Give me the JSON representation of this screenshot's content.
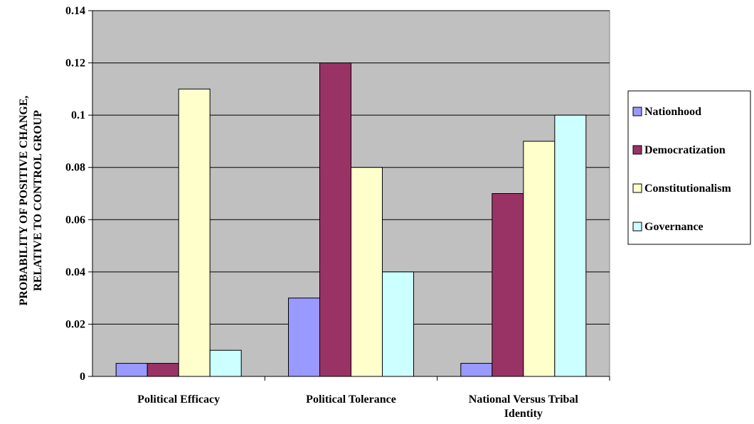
{
  "chart_data": {
    "type": "bar",
    "categories": [
      [
        "Political Efficacy"
      ],
      [
        "Political Tolerance"
      ],
      [
        "National Versus Tribal",
        "Identity"
      ]
    ],
    "series": [
      {
        "name": "Nationhood",
        "color": "#9999ff",
        "values": [
          0.005,
          0.03,
          0.005
        ]
      },
      {
        "name": "Democratization",
        "color": "#993366",
        "values": [
          0.005,
          0.12,
          0.07
        ]
      },
      {
        "name": "Constitutionalism",
        "color": "#ffffcc",
        "values": [
          0.11,
          0.08,
          0.09
        ]
      },
      {
        "name": "Governance",
        "color": "#ccffff",
        "values": [
          0.01,
          0.04,
          0.1
        ]
      }
    ],
    "ylabel": [
      "PROBABILITY OF POSITIVE CHANGE,",
      "RELATIVE TO CONTROL GROUP"
    ],
    "ylim": [
      0,
      0.14
    ],
    "yticks": [
      "0",
      "0.02",
      "0.04",
      "0.06",
      "0.08",
      "0.1",
      "0.12",
      "0.14"
    ],
    "plot_background": "#c0c0c0",
    "grid": true,
    "legend_position": "right"
  }
}
